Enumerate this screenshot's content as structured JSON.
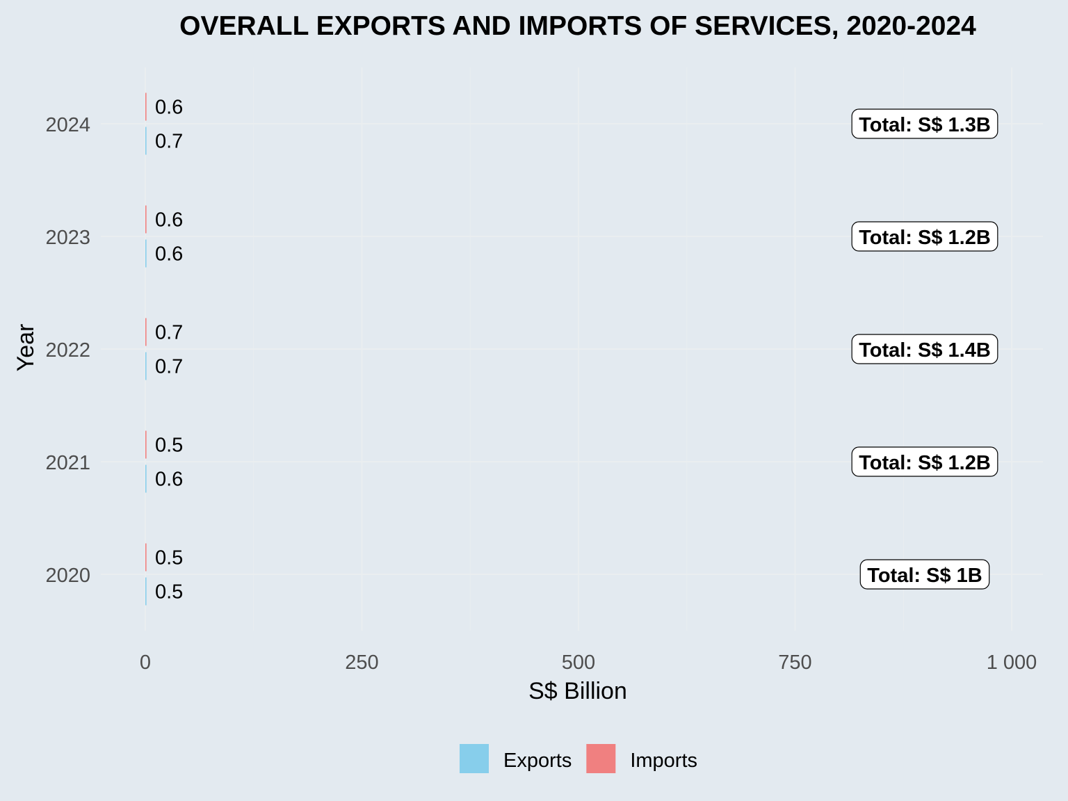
{
  "chart_data": {
    "type": "bar",
    "orientation": "horizontal",
    "title": "OVERALL EXPORTS AND IMPORTS OF SERVICES, 2020-2024",
    "xlabel": "S$ Billion",
    "ylabel": "Year",
    "xlim": [
      0,
      1000
    ],
    "x_ticks": [
      0,
      250,
      500,
      750,
      1000
    ],
    "x_tick_labels": [
      "0",
      "250",
      "500",
      "750",
      "1 000"
    ],
    "categories": [
      "2020",
      "2021",
      "2022",
      "2023",
      "2024"
    ],
    "series": [
      {
        "name": "Exports",
        "color": "#87CEEB",
        "values": [
          0.5,
          0.6,
          0.7,
          0.6,
          0.7
        ],
        "labels": [
          "0.5",
          "0.6",
          "0.7",
          "0.6",
          "0.7"
        ]
      },
      {
        "name": "Imports",
        "color": "#F08080",
        "values": [
          0.5,
          0.5,
          0.7,
          0.6,
          0.6
        ],
        "labels": [
          "0.5",
          "0.5",
          "0.7",
          "0.6",
          "0.6"
        ]
      }
    ],
    "totals": [
      "Total: S$ 1B",
      "Total: S$ 1.2B",
      "Total: S$ 1.4B",
      "Total: S$ 1.2B",
      "Total: S$ 1.3B"
    ],
    "grid": true,
    "legend_position": "bottom"
  },
  "colors": {
    "background": "#E3EAF0",
    "grid": "#EAEEF0",
    "text": "#000000",
    "tick_text": "#4D4D4D"
  }
}
